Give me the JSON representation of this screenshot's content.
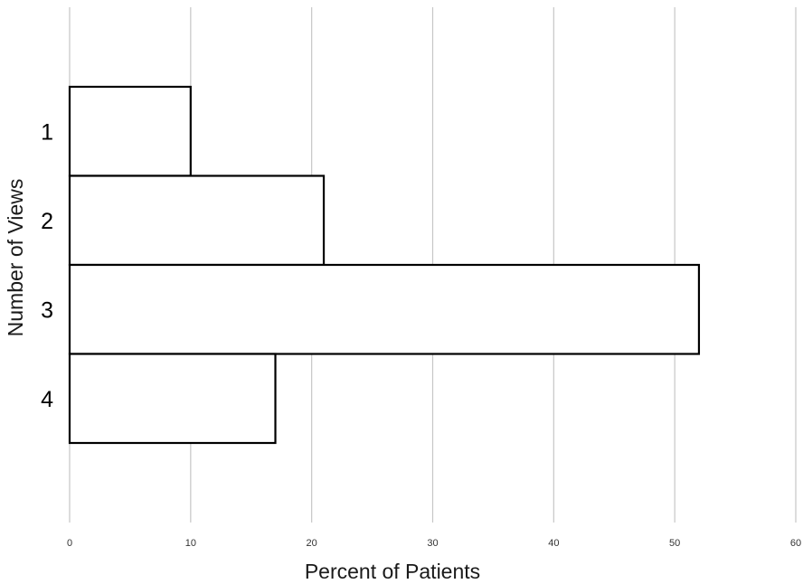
{
  "chart_data": {
    "type": "bar",
    "orientation": "horizontal",
    "categories": [
      "1",
      "2",
      "3",
      "4"
    ],
    "values": [
      10,
      21,
      52,
      17
    ],
    "title": "",
    "xlabel": "Percent of Patients",
    "ylabel": "Number of Views",
    "xlim": [
      0,
      60
    ],
    "xticks": [
      "0",
      "10",
      "20",
      "30",
      "40",
      "50",
      "60"
    ],
    "grid": "vertical",
    "legend": "none",
    "bar_fill": "#ffffff",
    "bar_edge": "#000000",
    "grid_color": "#c6c6c6"
  }
}
